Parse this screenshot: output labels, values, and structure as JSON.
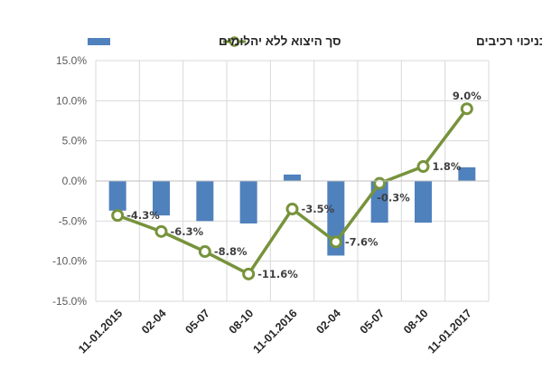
{
  "chart_data": {
    "type": "bar+line",
    "categories": [
      "11-01.2015",
      "02-04",
      "05-07",
      "08-10",
      "11-01.2016",
      "02-04",
      "05-07",
      "08-10",
      "11-01.2017"
    ],
    "series": [
      {
        "name": "סך היצוא ללא יהלומים",
        "type": "bar",
        "color": "#4f81bd",
        "values": [
          -3.7,
          -4.3,
          -5.0,
          -5.3,
          0.8,
          -9.3,
          -5.2,
          -5.2,
          1.7
        ]
      },
      {
        "name": "סך היצוא ללא יהלומים - בניכוי רכיבים",
        "type": "line",
        "color": "#77933c",
        "values": [
          -4.3,
          -6.3,
          -8.8,
          -11.6,
          -3.5,
          -7.6,
          -0.3,
          1.8,
          9.0
        ],
        "labels": [
          "-4.3%",
          "-6.3%",
          "-8.8%",
          "-11.6%",
          "-3.5%",
          "-7.6%",
          "-0.3%",
          "1.8%",
          "9.0%"
        ]
      }
    ],
    "yticks": [
      "15.0%",
      "10.0%",
      "5.0%",
      "0.0%",
      "-5.0%",
      "-10.0%",
      "-15.0%"
    ],
    "ylim": [
      -15,
      15
    ],
    "grid": true,
    "legend": "top"
  }
}
